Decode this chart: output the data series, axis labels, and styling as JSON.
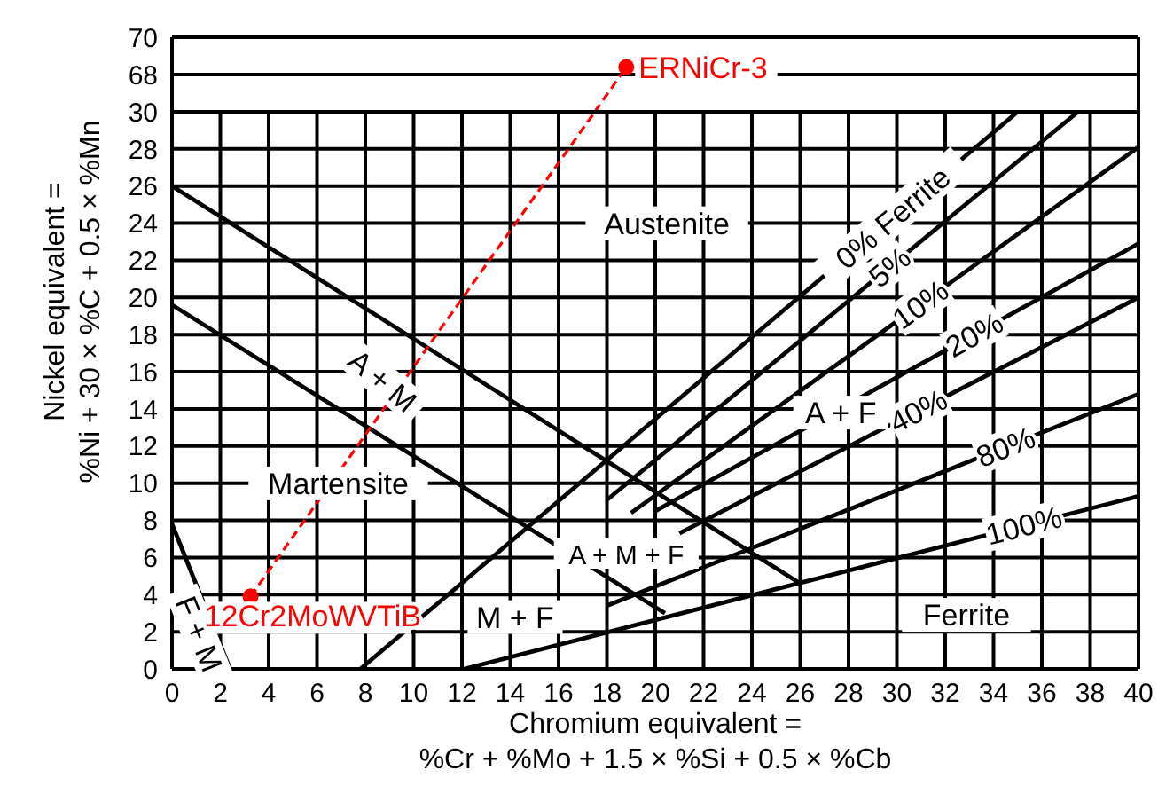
{
  "chart_data": [
    {
      "type": "line",
      "xlim": [
        0,
        40
      ],
      "xticks": [
        0,
        2,
        4,
        6,
        8,
        10,
        12,
        14,
        16,
        18,
        20,
        22,
        24,
        26,
        28,
        30,
        32,
        34,
        36,
        38,
        40
      ],
      "ylim": [
        66,
        70
      ],
      "yticks": [
        68,
        70
      ],
      "tick_labels": "y",
      "grid": true,
      "series": [
        {
          "type": "line",
          "color": "#ff0000",
          "line_style": "dashed",
          "marker": "none",
          "x": [
            17.5,
            18.8
          ],
          "values": [
            66,
            68.4
          ]
        },
        {
          "type": "scatter",
          "name": "ERNiCr-3",
          "color": "#ff0000",
          "marker": "circle",
          "x": [
            18.8
          ],
          "values": [
            68.4
          ]
        }
      ]
    },
    {
      "type": "line",
      "xlabel": "Chromium equivalent =\n%Cr + %Mo + 1.5 × %Si + 0.5 × %Cb",
      "ylabel": "Nickel equivalent =\n%Ni + 30 × %C + 0.5 × %Mn",
      "xlim": [
        0,
        40
      ],
      "xticks": [
        0,
        2,
        4,
        6,
        8,
        10,
        12,
        14,
        16,
        18,
        20,
        22,
        24,
        26,
        28,
        30,
        32,
        34,
        36,
        38,
        40
      ],
      "ylim": [
        0,
        30
      ],
      "yticks": [
        0,
        2,
        4,
        6,
        8,
        10,
        12,
        14,
        16,
        18,
        20,
        22,
        24,
        26,
        28,
        30
      ],
      "grid": true,
      "annotations": [
        "Austenite",
        "A + M",
        "Martensite",
        "A + M + F",
        "A + F",
        "M + F",
        "Ferrite",
        "F + M"
      ],
      "series": [
        {
          "type": "line",
          "color": "#000000",
          "line_style": "solid",
          "marker": "none",
          "x": [
            0,
            26
          ],
          "values": [
            26,
            4.6
          ]
        },
        {
          "type": "line",
          "color": "#000000",
          "line_style": "solid",
          "marker": "none",
          "x": [
            0,
            20.4
          ],
          "values": [
            19.6,
            3
          ]
        },
        {
          "type": "line",
          "color": "#000000",
          "line_style": "solid",
          "marker": "none",
          "x": [
            0,
            2.4
          ],
          "values": [
            7.8,
            0
          ]
        },
        {
          "type": "line",
          "name": "0% Ferrite",
          "color": "#000000",
          "line_style": "solid",
          "marker": "none",
          "x": [
            7.8,
            35
          ],
          "values": [
            0,
            30
          ]
        },
        {
          "type": "line",
          "name": "5%",
          "color": "#000000",
          "line_style": "solid",
          "marker": "none",
          "x": [
            18,
            37.5
          ],
          "values": [
            9.1,
            30
          ]
        },
        {
          "type": "line",
          "name": "10%",
          "color": "#000000",
          "line_style": "solid",
          "marker": "none",
          "x": [
            19,
            40
          ],
          "values": [
            8.4,
            28.1
          ]
        },
        {
          "type": "line",
          "name": "20%",
          "color": "#000000",
          "line_style": "solid",
          "marker": "none",
          "x": [
            20,
            40
          ],
          "values": [
            8.5,
            22.9
          ]
        },
        {
          "type": "line",
          "name": "40%",
          "color": "#000000",
          "line_style": "solid",
          "marker": "none",
          "x": [
            21,
            40
          ],
          "values": [
            7.3,
            20
          ]
        },
        {
          "type": "line",
          "name": "80%",
          "color": "#000000",
          "line_style": "solid",
          "marker": "none",
          "x": [
            18,
            40
          ],
          "values": [
            3.4,
            14.8
          ]
        },
        {
          "type": "line",
          "name": "100%",
          "color": "#000000",
          "line_style": "solid",
          "marker": "none",
          "x": [
            12.1,
            40
          ],
          "values": [
            0,
            9.3
          ]
        },
        {
          "type": "line",
          "color": "#ff0000",
          "line_style": "dashed",
          "marker": "none",
          "x": [
            3.25,
            17.5
          ],
          "values": [
            3.9,
            30
          ]
        },
        {
          "type": "scatter",
          "name": "12Cr2MoWVTiB",
          "color": "#ff0000",
          "marker": "circle",
          "x": [
            3.25
          ],
          "values": [
            3.9
          ]
        }
      ]
    }
  ]
}
